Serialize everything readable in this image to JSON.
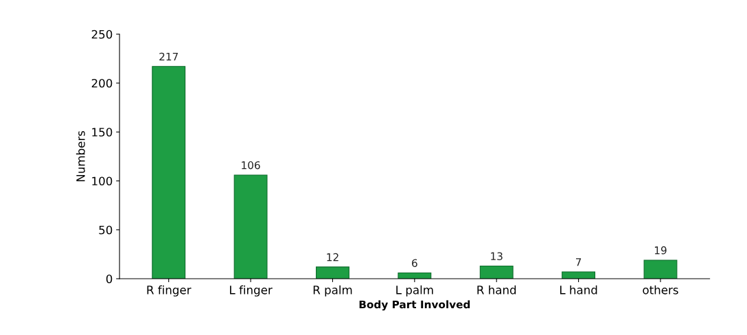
{
  "chart_data": {
    "type": "bar",
    "xlabel": "Body Part Involved",
    "ylabel": "Numbers",
    "categories": [
      "R finger",
      "L finger",
      "R palm",
      "L palm",
      "R hand",
      "L hand",
      "others"
    ],
    "values": [
      217,
      106,
      12,
      6,
      13,
      7,
      19
    ],
    "color": "#1e9e44",
    "ylim": [
      0,
      250
    ],
    "yticks": [
      0,
      50,
      100,
      150,
      200,
      250
    ],
    "grid": false,
    "data_labels": true
  }
}
